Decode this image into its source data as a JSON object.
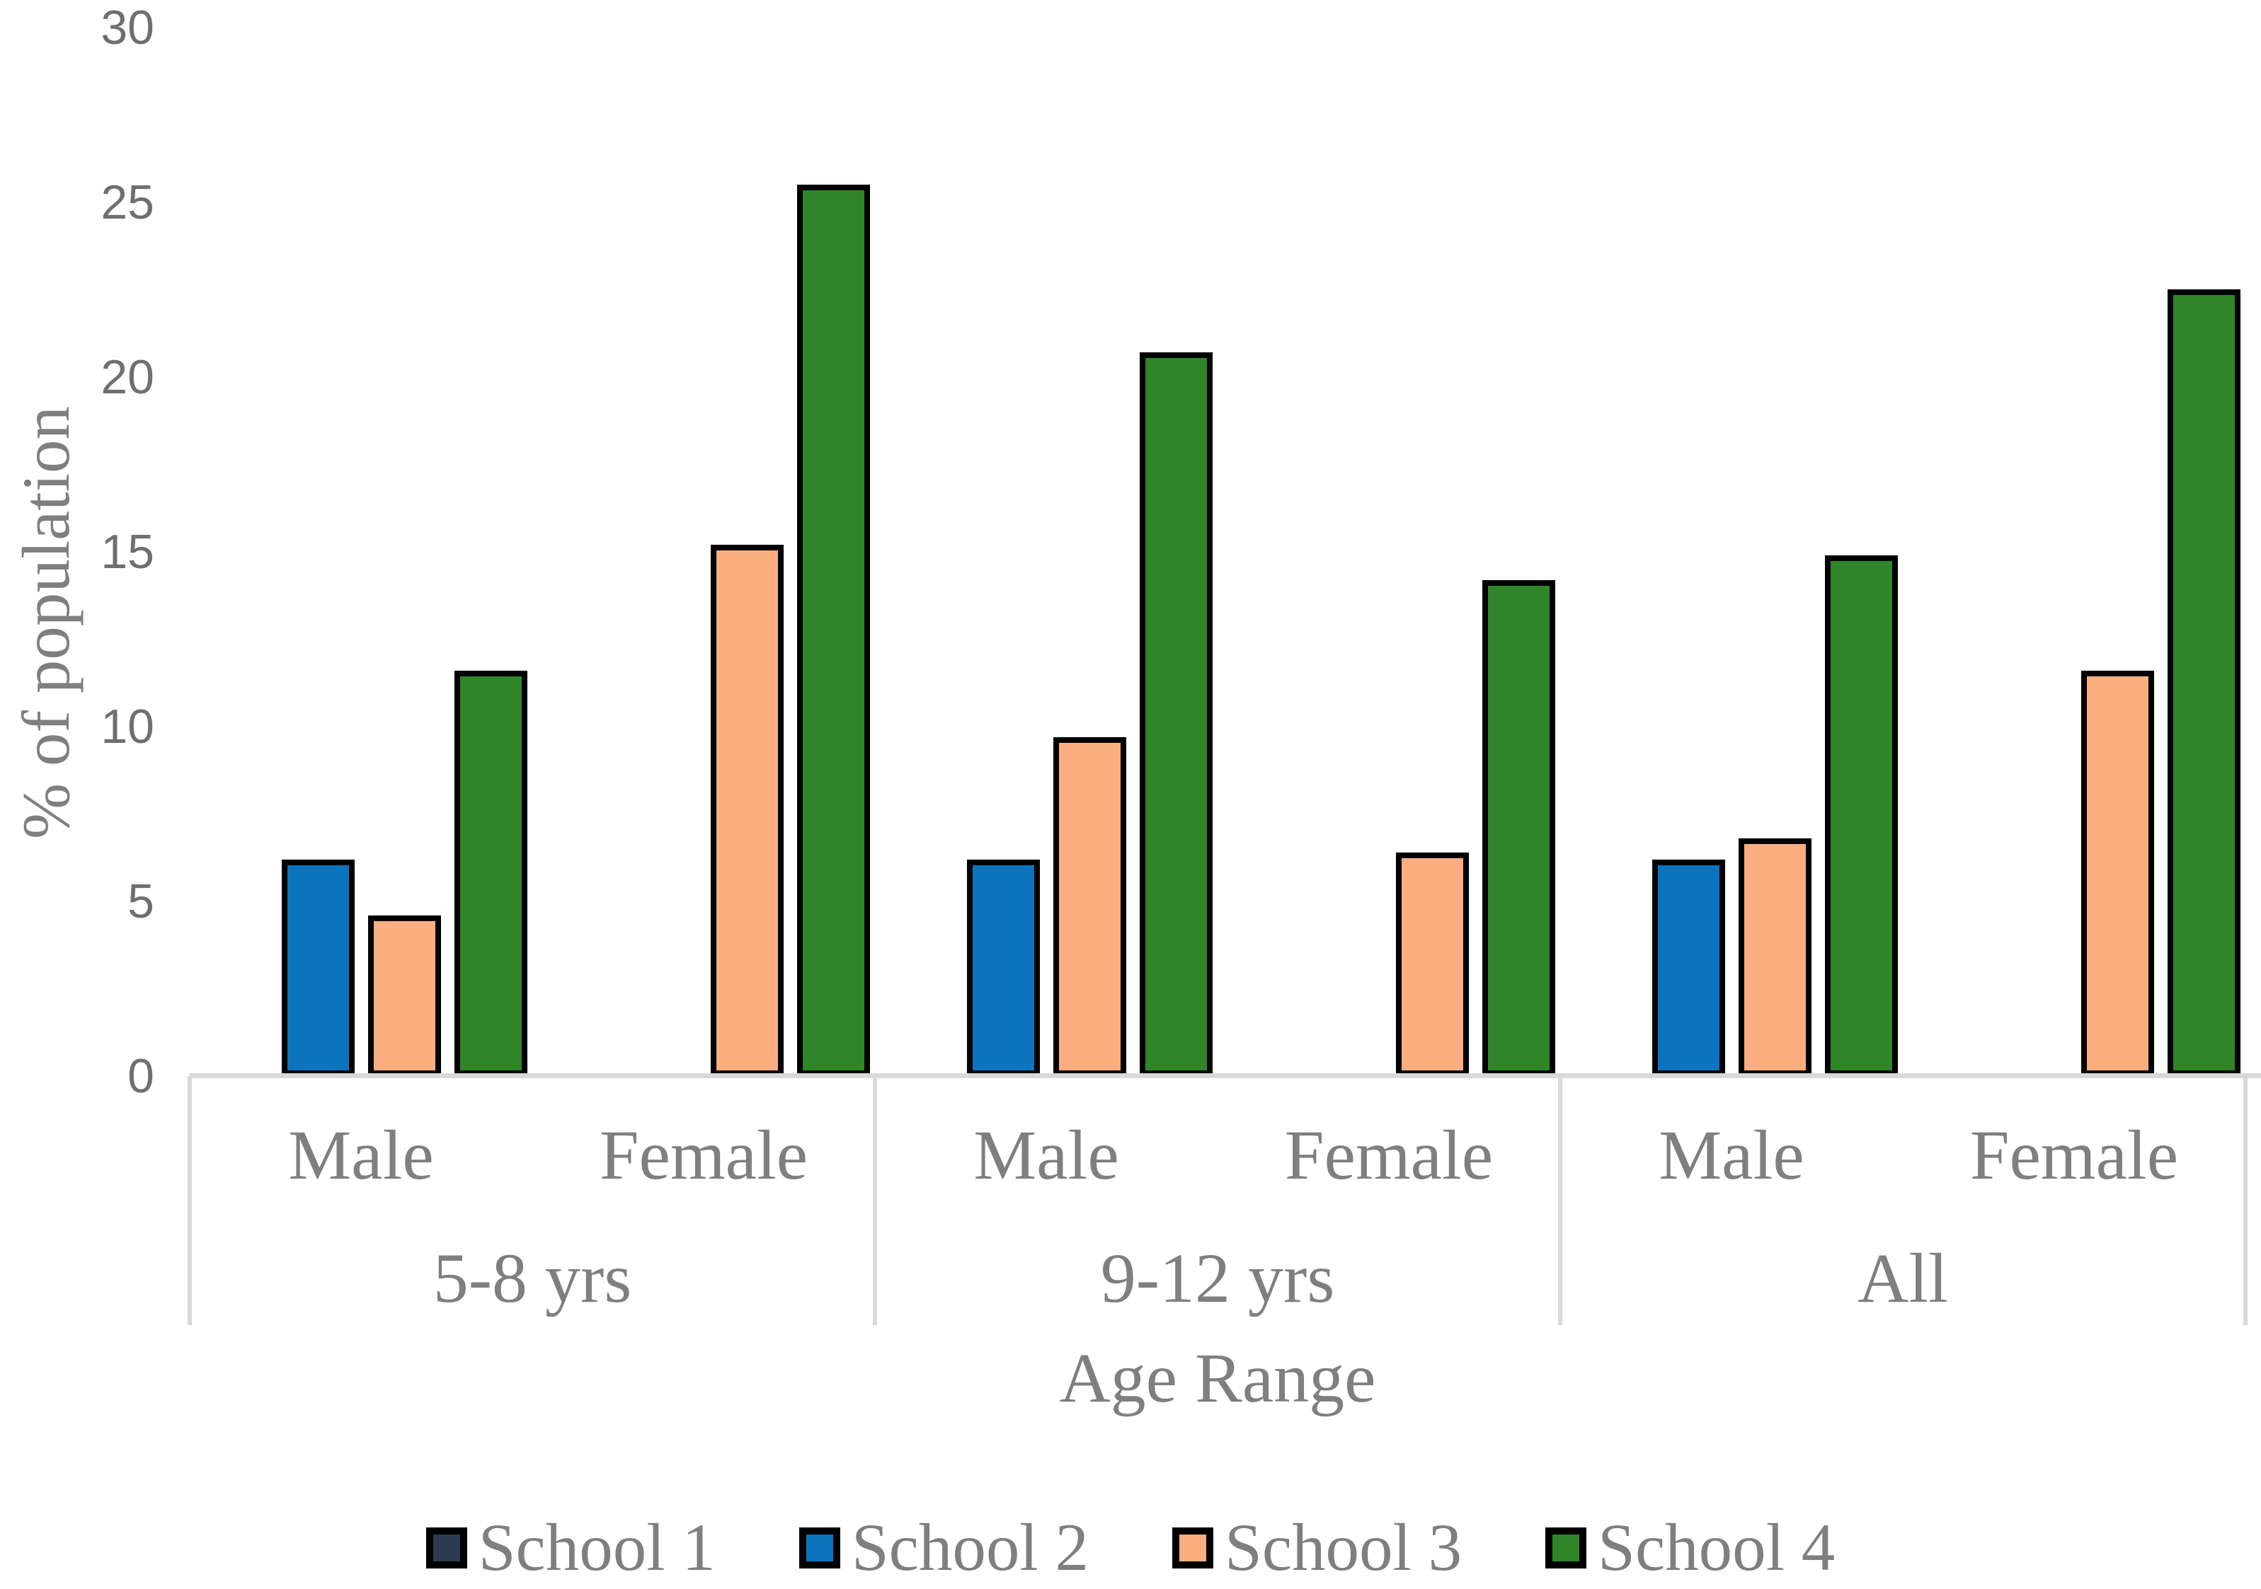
{
  "chart_data": {
    "type": "bar",
    "title": "",
    "ylabel": "% of population",
    "xlabel": "Age Range",
    "ylim": [
      0,
      30
    ],
    "yticks": [
      0,
      5,
      10,
      15,
      20,
      25,
      30
    ],
    "grid": false,
    "legend_position": "bottom",
    "groups": [
      "5-8 yrs",
      "9-12 yrs",
      "All"
    ],
    "subgroups": [
      "Male",
      "Female"
    ],
    "categories": [
      "5-8 yrs Male",
      "5-8 yrs Female",
      "9-12 yrs Male",
      "9-12 yrs Female",
      "All Male",
      "All Female"
    ],
    "series": [
      {
        "name": "School 1",
        "color": "#2B3C51",
        "values": [
          0,
          0,
          0,
          0,
          0,
          0
        ]
      },
      {
        "name": "School 2",
        "color": "#0B74BC",
        "values": [
          6.2,
          0,
          6.2,
          0,
          6.2,
          0
        ]
      },
      {
        "name": "School 3",
        "color": "#FBAE80",
        "values": [
          4.6,
          15.2,
          9.7,
          6.4,
          6.8,
          11.6
        ]
      },
      {
        "name": "School 4",
        "color": "#2F8528",
        "values": [
          11.6,
          25.5,
          20.7,
          14.2,
          14.9,
          22.5
        ]
      }
    ],
    "bar_border_color": "#000000",
    "axis_line_color": "#D9D9D9",
    "text_color": "#7F7F7F"
  }
}
